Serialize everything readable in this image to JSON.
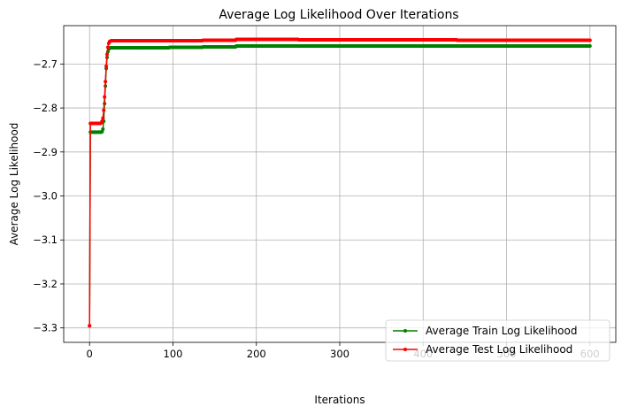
{
  "chart_data": {
    "type": "line",
    "title": "Average Log Likelihood Over Iterations",
    "xlabel": "Iterations",
    "ylabel": "Average Log Likelihood",
    "xlim": [
      -31,
      631
    ],
    "ylim": [
      -3.3328,
      -2.6128
    ],
    "x_ticks": [
      0,
      100,
      200,
      300,
      400,
      500,
      600
    ],
    "y_ticks": [
      -3.3,
      -3.2,
      -3.1,
      -3.0,
      -2.9,
      -2.8,
      -2.7
    ],
    "x_tick_labels": [
      "0",
      "100",
      "200",
      "300",
      "400",
      "500",
      "600"
    ],
    "y_tick_labels": [
      "−3.3",
      "−3.2",
      "−3.1",
      "−3.0",
      "−2.9",
      "−2.8",
      "−2.7"
    ],
    "grid": true,
    "legend_position": "lower-right",
    "colors": {
      "train": "#008000",
      "test": "#ff0000"
    },
    "series": [
      {
        "name": "Average Train Log Likelihood",
        "key": "train",
        "x_start": 0,
        "x_end": 600,
        "values": [
          -3.295,
          -2.855,
          -2.855,
          -2.855,
          -2.855,
          -2.855,
          -2.855,
          -2.855,
          -2.855,
          -2.855,
          -2.855,
          -2.855,
          -2.855,
          -2.855,
          -2.855,
          -2.854,
          -2.848,
          -2.83,
          -2.79,
          -2.75,
          -2.71,
          -2.685,
          -2.672,
          -2.666,
          -2.664,
          -2.663
        ],
        "plateaus": [
          [
            26,
            95,
            -2.663
          ],
          [
            96,
            135,
            -2.662
          ],
          [
            136,
            175,
            -2.661
          ],
          [
            176,
            600,
            -2.659
          ]
        ]
      },
      {
        "name": "Average Test Log Likelihood",
        "key": "test",
        "x_start": 0,
        "x_end": 600,
        "values": [
          -3.295,
          -2.835,
          -2.835,
          -2.835,
          -2.835,
          -2.835,
          -2.835,
          -2.835,
          -2.835,
          -2.835,
          -2.835,
          -2.835,
          -2.835,
          -2.835,
          -2.834,
          -2.83,
          -2.823,
          -2.805,
          -2.775,
          -2.74,
          -2.705,
          -2.678,
          -2.662,
          -2.653,
          -2.649,
          -2.648
        ],
        "plateaus": [
          [
            26,
            135,
            -2.647
          ],
          [
            136,
            175,
            -2.646
          ],
          [
            176,
            250,
            -2.644
          ],
          [
            251,
            440,
            -2.645
          ],
          [
            441,
            600,
            -2.646
          ]
        ]
      }
    ]
  }
}
